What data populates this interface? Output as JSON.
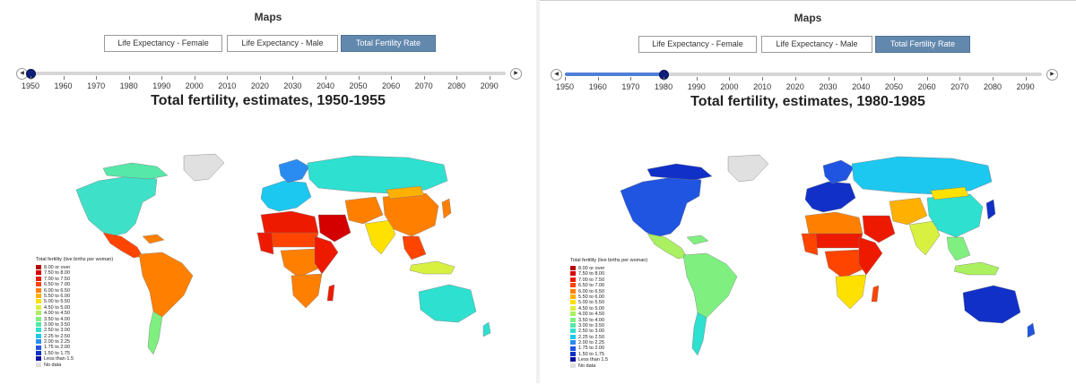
{
  "legend": {
    "title": "Total fertility (live births per woman)",
    "items": [
      {
        "label": "8.00 or over",
        "color": "#b30000"
      },
      {
        "label": "7.50 to 8.00",
        "color": "#d40000"
      },
      {
        "label": "7.00 to 7.50",
        "color": "#ee1a00"
      },
      {
        "label": "6.50 to 7.00",
        "color": "#ff4400"
      },
      {
        "label": "6.00 to 6.50",
        "color": "#ff8000"
      },
      {
        "label": "5.50 to 6.00",
        "color": "#ffb000"
      },
      {
        "label": "5.00 to 5.50",
        "color": "#ffe100"
      },
      {
        "label": "4.50 to 5.00",
        "color": "#d8f040"
      },
      {
        "label": "4.00 to 4.50",
        "color": "#aaf060"
      },
      {
        "label": "3.50 to 4.00",
        "color": "#7ff080"
      },
      {
        "label": "3.00 to 3.50",
        "color": "#55e8a8"
      },
      {
        "label": "2.50 to 3.00",
        "color": "#2ee0d0"
      },
      {
        "label": "2.25 to 2.50",
        "color": "#1cc8f0"
      },
      {
        "label": "2.00 to 2.25",
        "color": "#2a8cf0"
      },
      {
        "label": "1.75 to 2.00",
        "color": "#1f55e0"
      },
      {
        "label": "1.50 to 1.75",
        "color": "#1030c8"
      },
      {
        "label": "Less than 1.5",
        "color": "#0a10a0"
      },
      {
        "label": "No data",
        "color": "#e0e0e0"
      }
    ]
  },
  "panels": [
    {
      "title": "Maps",
      "tabs": [
        {
          "label": "Life Expectancy - Female",
          "active": false
        },
        {
          "label": "Life Expectancy - Male",
          "active": false
        },
        {
          "label": "Total Fertility Rate",
          "active": true
        }
      ],
      "slider": {
        "value": 1950,
        "min": 1950,
        "max": 2095,
        "ticks": [
          "1950",
          "1960",
          "1970",
          "1980",
          "1990",
          "2000",
          "2010",
          "2020",
          "2030",
          "2040",
          "2050",
          "2060",
          "2070",
          "2080",
          "2090"
        ],
        "prev_icon": "triangle-left",
        "next_icon": "triangle-right"
      },
      "map_title": "Total fertility, estimates, 1950-1955"
    },
    {
      "title": "Maps",
      "tabs": [
        {
          "label": "Life Expectancy - Female",
          "active": false
        },
        {
          "label": "Life Expectancy - Male",
          "active": false
        },
        {
          "label": "Total Fertility Rate",
          "active": true
        }
      ],
      "slider": {
        "value": 1980,
        "min": 1950,
        "max": 2095,
        "ticks": [
          "1950",
          "1960",
          "1970",
          "1980",
          "1990",
          "2000",
          "2010",
          "2020",
          "2030",
          "2040",
          "2050",
          "2060",
          "2070",
          "2080",
          "2090"
        ],
        "prev_icon": "triangle-left",
        "next_icon": "triangle-right"
      },
      "map_title": "Total fertility, estimates, 1980-1985"
    }
  ],
  "maps": [
    {
      "regions": {
        "north_america": "#3fe0c8",
        "canada_arctic": "#55e8a8",
        "greenland": "#e0e0e0",
        "central_america": "#ff4400",
        "caribbean": "#ff8000",
        "south_america": "#ff8000",
        "south_america_south": "#7ff080",
        "europe": "#1cc8f0",
        "scandinavia": "#2a8cf0",
        "russia": "#2ee0d0",
        "north_africa": "#ee1a00",
        "sahel": "#ff4400",
        "west_africa": "#ee1a00",
        "central_africa": "#ff8000",
        "east_africa": "#ee1a00",
        "southern_africa": "#ff8000",
        "middle_east": "#d40000",
        "iran_central_asia": "#ff8000",
        "south_asia": "#ffe100",
        "china": "#ff8000",
        "mongolia": "#ffb000",
        "japan": "#ff8000",
        "southeast_asia": "#ff4400",
        "indonesia": "#d8f040",
        "australia": "#2ee0d0",
        "new_zealand": "#2ee0d0",
        "madagascar": "#ee1a00"
      }
    },
    {
      "regions": {
        "north_america": "#1f55e0",
        "canada_arctic": "#1030c8",
        "greenland": "#e0e0e0",
        "central_america": "#aaf060",
        "caribbean": "#7ff080",
        "south_america": "#7ff080",
        "south_america_south": "#2ee0d0",
        "europe": "#1030c8",
        "scandinavia": "#1f55e0",
        "russia": "#1cc8f0",
        "north_africa": "#ff8000",
        "sahel": "#ee1a00",
        "west_africa": "#ff4400",
        "central_africa": "#ff4400",
        "east_africa": "#ee1a00",
        "southern_africa": "#ffe100",
        "middle_east": "#ee1a00",
        "iran_central_asia": "#ffb000",
        "south_asia": "#d8f040",
        "china": "#2ee0d0",
        "mongolia": "#ffe100",
        "japan": "#1030c8",
        "southeast_asia": "#7ff080",
        "indonesia": "#aaf060",
        "australia": "#1030c8",
        "new_zealand": "#1f55e0",
        "madagascar": "#ff4400"
      }
    }
  ]
}
